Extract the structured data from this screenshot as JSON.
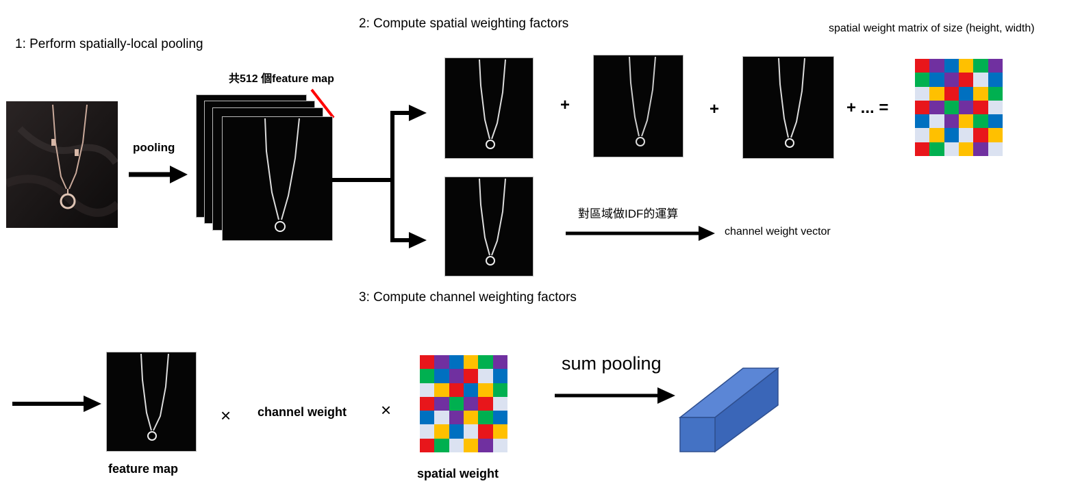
{
  "steps": {
    "step1": "1: Perform spatially-local pooling",
    "step2": "2: Compute spatial weighting factors",
    "step3": "3: Compute channel weighting factors"
  },
  "labels": {
    "pooling": "pooling",
    "feature_map_count": "共512 個feature map",
    "spatial_matrix": "spatial weight matrix of size (height, width)",
    "idf": "對區域做IDF的運算",
    "channel_vector": "channel weight vector",
    "sum_pooling": "sum pooling",
    "feature_map": "feature map",
    "channel_weight": "channel weight",
    "spatial_weight": "spatial weight"
  },
  "operators": {
    "plus": "+",
    "plus_dots_equals": "+ ... =",
    "times": "×"
  },
  "colors": {
    "red": "#e8161b",
    "purple": "#7030a0",
    "blue": "#0070c0",
    "yellow": "#ffc000",
    "green": "#00b050",
    "light": "#dbe2f1",
    "cuboid_front": "#4472c4",
    "cuboid_top": "#5b86d6",
    "cuboid_side": "#3a66b8",
    "red_marker": "#ff0000"
  },
  "spatial_grid_top": [
    [
      "red",
      "purple",
      "blue",
      "yellow",
      "green",
      "purple"
    ],
    [
      "green",
      "blue",
      "purple",
      "red",
      "light",
      "blue"
    ],
    [
      "light",
      "yellow",
      "red",
      "blue",
      "yellow",
      "green"
    ],
    [
      "red",
      "purple",
      "green",
      "purple",
      "red",
      "light"
    ],
    [
      "blue",
      "light",
      "purple",
      "yellow",
      "green",
      "blue"
    ],
    [
      "light",
      "yellow",
      "blue",
      "light",
      "red",
      "yellow"
    ],
    [
      "red",
      "green",
      "light",
      "yellow",
      "purple",
      "light"
    ]
  ],
  "spatial_grid_bottom": [
    [
      "red",
      "purple",
      "blue",
      "yellow",
      "green",
      "purple"
    ],
    [
      "green",
      "blue",
      "purple",
      "red",
      "light",
      "blue"
    ],
    [
      "light",
      "yellow",
      "red",
      "blue",
      "yellow",
      "green"
    ],
    [
      "red",
      "purple",
      "green",
      "purple",
      "red",
      "light"
    ],
    [
      "blue",
      "light",
      "purple",
      "yellow",
      "green",
      "blue"
    ],
    [
      "light",
      "yellow",
      "blue",
      "light",
      "red",
      "yellow"
    ],
    [
      "red",
      "green",
      "light",
      "yellow",
      "purple",
      "light"
    ]
  ]
}
